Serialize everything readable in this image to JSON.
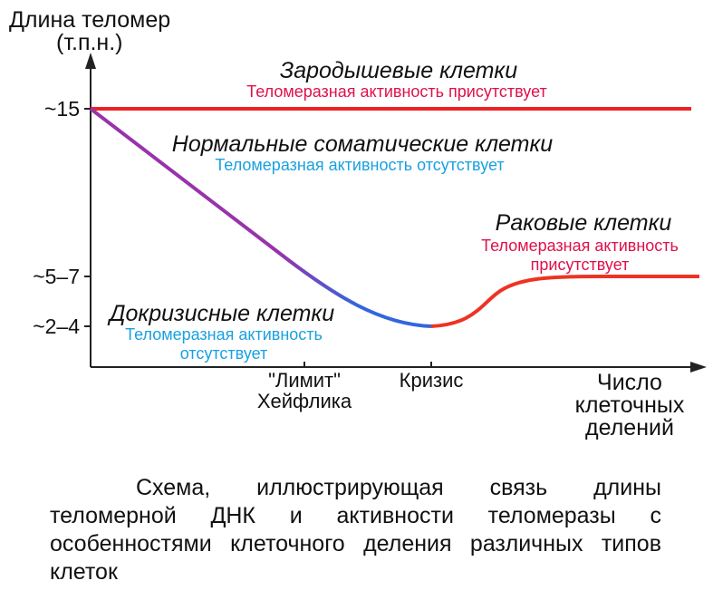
{
  "colors": {
    "germ": "#ee2222",
    "somatic_purple": "#9933aa",
    "somatic_blue": "#3366dd",
    "cancer": "#ee3322",
    "label_red": "#e0104a",
    "label_blue": "#1aa0e0",
    "axis": "#222222"
  },
  "y_axis": {
    "title_line1": "Длина теломер",
    "title_line2": "(т.п.н.)",
    "ticks": [
      "~15",
      "~5–7",
      "~2–4"
    ]
  },
  "x_axis": {
    "limit_line1": "\"Лимит\"",
    "limit_line2": "Хейфлика",
    "crisis": "Кризис",
    "title_line1": "Число",
    "title_line2": "клеточных",
    "title_line3": "делений"
  },
  "labels": {
    "germ_title": "Зародышевые клетки",
    "germ_sub": "Теломеразная активность присутствует",
    "somatic_title": "Нормальные соматические клетки",
    "somatic_sub": "Теломеразная активность отсутствует",
    "cancer_title": "Раковые клетки",
    "cancer_sub1": "Теломеразная активность",
    "cancer_sub2": "присутствует",
    "precrisis_title": "Докризисные клетки",
    "precrisis_sub1": "Теломеразная активность",
    "precrisis_sub2": "отсутствует"
  },
  "caption": "Схема, иллюстрирующая связь длины теломерной ДНК и активности теломеразы с особенностями клеточного деления различных типов клеток"
}
